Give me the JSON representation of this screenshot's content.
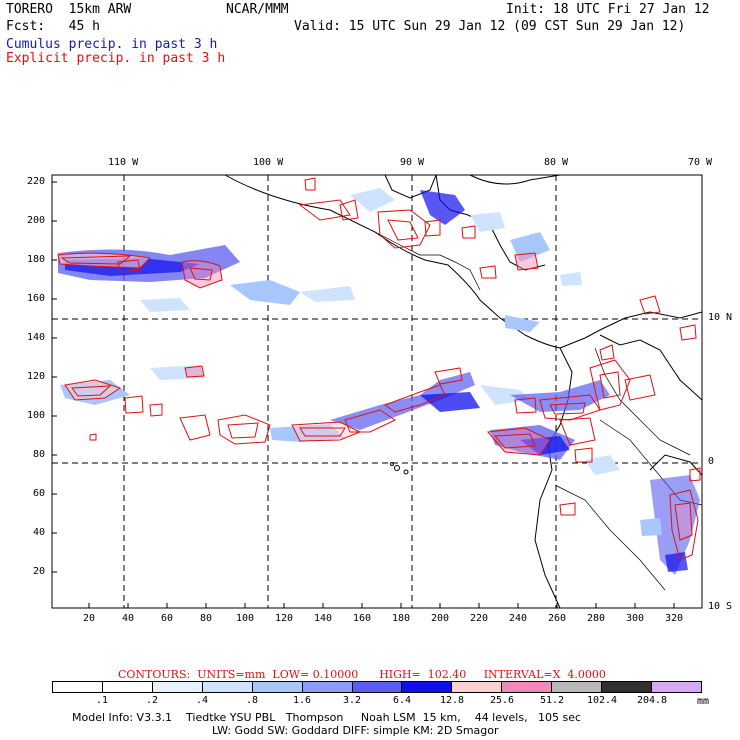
{
  "header": {
    "model": "TORERO  15km ARW",
    "org": "NCAR/MMM",
    "init": "Init: 18 UTC Fri 27 Jan 12",
    "fcst": "Fcst:   45 h",
    "valid": "Valid: 15 UTC Sun 29 Jan 12 (09 CST Sun 29 Jan 12)",
    "legend_cumulus": "Cumulus precip. in past 3 h",
    "legend_explicit": "Explicit precip. in past 3 h"
  },
  "axes": {
    "top_lon": [
      "110 W",
      "100 W",
      "90 W",
      "80 W",
      "70 W"
    ],
    "right_lat": [
      "10 N",
      "0",
      "10 S"
    ],
    "left_y": [
      "220",
      "200",
      "180",
      "160",
      "140",
      "120",
      "100",
      "80",
      "60",
      "40",
      "20"
    ],
    "bottom_x": [
      "20",
      "40",
      "60",
      "80",
      "100",
      "120",
      "140",
      "160",
      "180",
      "200",
      "220",
      "240",
      "260",
      "280",
      "300",
      "320"
    ]
  },
  "contour_info": "CONTOURS:  UNITS=mm  LOW= 0.10000      HIGH=  102.40     INTERVAL=X  4.0000",
  "colorbar": {
    "labels": [
      ".1",
      ".2",
      ".4",
      ".8",
      "1.6",
      "3.2",
      "6.4",
      "12.8",
      "25.6",
      "51.2",
      "102.4",
      "204.8"
    ],
    "unit": "mm",
    "colors": [
      "#ffffff",
      "#ffffff",
      "#e8f2ff",
      "#cfe3ff",
      "#a9c7ff",
      "#8c9df5",
      "#5a5df0",
      "#1010ee",
      "#ffd0d0",
      "#f08ab8",
      "#b8b8b8",
      "#303030",
      "#d9a8f5"
    ]
  },
  "footer": {
    "line1": "Model Info: V3.3.1    Tiedtke YSU PBL   Thompson     Noah LSM  15 km,    44 levels,   105 sec",
    "line2": "LW: Godd SW: Goddard DIFF: simple KM: 2D Smagor"
  }
}
